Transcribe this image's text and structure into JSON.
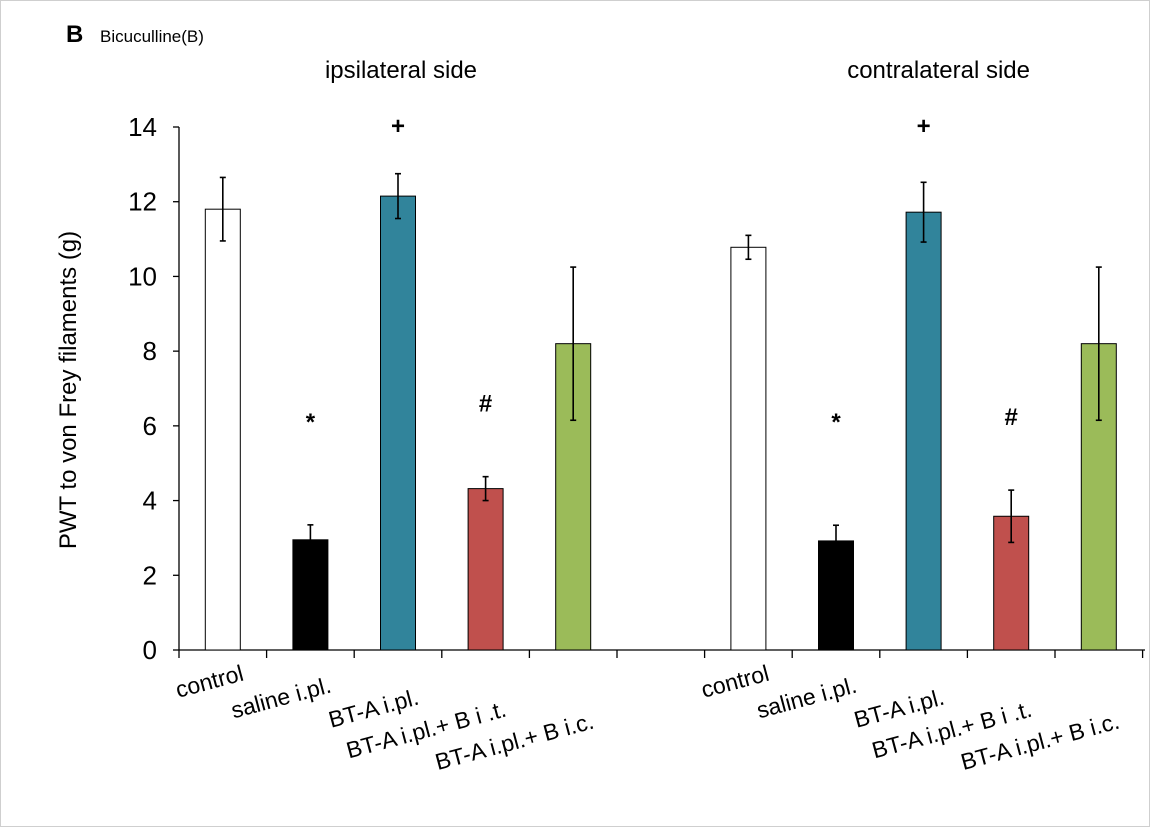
{
  "panel": {
    "letter": "B",
    "label": "Bicuculline(B)"
  },
  "chart_data": {
    "type": "bar",
    "ylabel": "PWT to von Frey filaments (g)",
    "ylim": [
      0,
      14
    ],
    "yticks": [
      0,
      2,
      4,
      6,
      8,
      10,
      12,
      14
    ],
    "categories": [
      "control",
      "saline i.pl.",
      "BT-A i.pl.",
      "BT-A i.pl.+ B i .t.",
      "BT-A i.pl.+ B i.c."
    ],
    "colors": [
      "#ffffff",
      "#000000",
      "#31849b",
      "#c0504d",
      "#9bbb59"
    ],
    "groups": [
      {
        "title": "ipsilateral side",
        "values": [
          11.8,
          2.95,
          12.15,
          4.32,
          8.2
        ],
        "errors": [
          0.85,
          0.4,
          0.6,
          0.32,
          2.05
        ],
        "annotations": [
          "",
          "*",
          "+",
          "#",
          ""
        ]
      },
      {
        "title": "contralateral side",
        "values": [
          10.78,
          2.92,
          11.72,
          3.58,
          8.2
        ],
        "errors": [
          0.32,
          0.42,
          0.8,
          0.7,
          2.05
        ],
        "annotations": [
          "",
          "*",
          "+",
          "#",
          ""
        ]
      }
    ]
  }
}
